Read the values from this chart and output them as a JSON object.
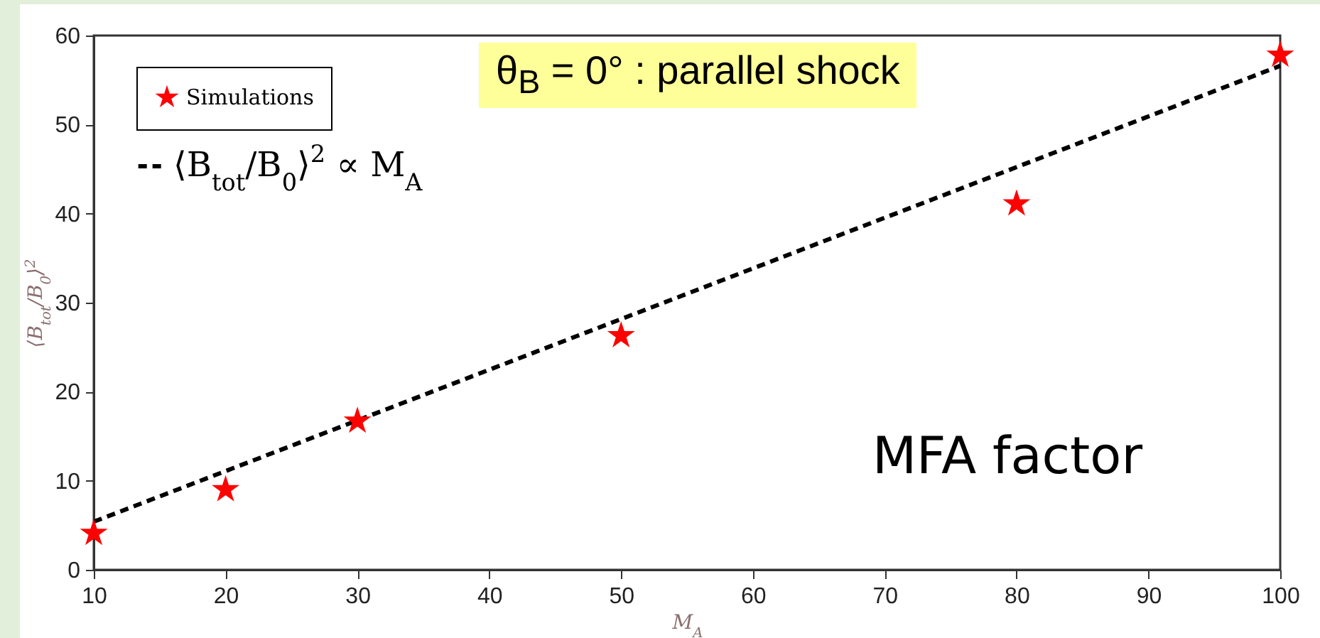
{
  "chart_data": {
    "type": "scatter",
    "xlabel": "M$_{A}$",
    "ylabel": "⟨B$_{tot}$/B$_{0}$⟩$^{2}$",
    "xlim": [
      10,
      100
    ],
    "xticks": [
      10,
      20,
      30,
      40,
      50,
      60,
      70,
      80,
      90,
      100
    ],
    "ylim": [
      0,
      60
    ],
    "yticks": [
      0,
      10,
      20,
      30,
      40,
      50,
      60
    ],
    "series": [
      {
        "name": "Simulations",
        "color": "#ff0000",
        "marker": "star",
        "x": [
          10,
          20,
          30,
          50,
          80,
          100
        ],
        "values": [
          4.1,
          9.0,
          16.7,
          26.3,
          41.1,
          57.8
        ]
      },
      {
        "name": "⟨B$_{tot}$/B$_{0}$⟩$^{2}$ ∝ M$_{A}$",
        "type": "line",
        "color": "#000000",
        "marker": "none",
        "line_style": "dashed",
        "x": [
          10,
          100
        ],
        "values": [
          5.4,
          56.6
        ]
      }
    ],
    "legend": "top left",
    "grid": false,
    "annotations": [
      "θ$_{B}$ = 0° : parallel shock",
      "MFA factor"
    ]
  }
}
